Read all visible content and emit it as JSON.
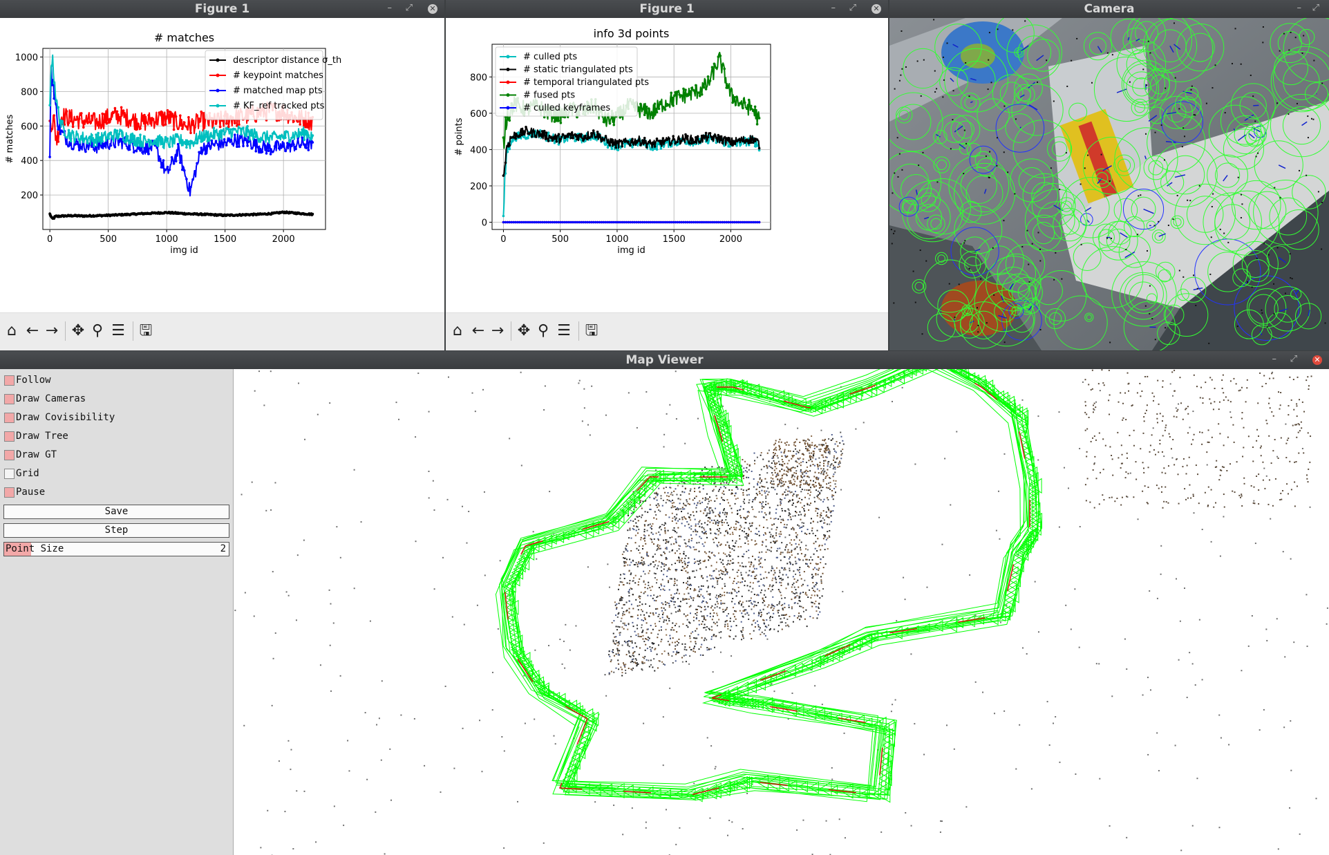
{
  "windows": {
    "fig1_title": "Figure 1",
    "fig2_title": "Figure 1",
    "camera_title": "Camera",
    "mapviewer_title": "Map Viewer"
  },
  "colors": {
    "black": "#000000",
    "red": "#ff0000",
    "blue": "#0000ff",
    "cyan": "#00bfbf",
    "green": "#008000",
    "trajectory_green": "#00ff00",
    "checkbox_on": "#f2a8a8"
  },
  "toolbar_icons": [
    "home-icon",
    "back-arrow-icon",
    "forward-arrow-icon",
    "pan-icon",
    "zoom-icon",
    "configure-subplots-icon",
    "save-icon"
  ],
  "map_panel": {
    "checkboxes": [
      {
        "label": "Follow",
        "checked": true
      },
      {
        "label": "Draw Cameras",
        "checked": true
      },
      {
        "label": "Draw Covisibility",
        "checked": true
      },
      {
        "label": "Draw Tree",
        "checked": true
      },
      {
        "label": "Draw GT",
        "checked": true
      },
      {
        "label": "Grid",
        "checked": false
      },
      {
        "label": "Pause",
        "checked": true
      }
    ],
    "save_label": "Save",
    "step_label": "Step",
    "point_size": {
      "label": "Point Size",
      "value": "2",
      "fraction": 0.12
    }
  },
  "chart_data": [
    {
      "type": "line",
      "title": "# matches",
      "xlabel": "img id",
      "ylabel": "# matches",
      "xlim": [
        -60,
        2360
      ],
      "ylim": [
        0,
        1050
      ],
      "xticks": [
        0,
        500,
        1000,
        1500,
        2000
      ],
      "yticks": [
        200,
        400,
        600,
        800,
        1000
      ],
      "grid": true,
      "legend_position": "top-right",
      "series": [
        {
          "name": "descriptor distance σ_th",
          "color": "#000000",
          "x": [
            0,
            20,
            50,
            100,
            200,
            300,
            400,
            500,
            600,
            700,
            800,
            900,
            1000,
            1100,
            1200,
            1300,
            1400,
            1500,
            1600,
            1700,
            1800,
            1900,
            2000,
            2100,
            2200,
            2250
          ],
          "y": [
            90,
            60,
            75,
            78,
            80,
            78,
            80,
            82,
            85,
            88,
            92,
            95,
            98,
            94,
            90,
            88,
            85,
            82,
            84,
            86,
            88,
            92,
            100,
            95,
            90,
            88
          ]
        },
        {
          "name": "# keypoint matches",
          "color": "#ff0000",
          "x": [
            0,
            10,
            30,
            60,
            100,
            150,
            200,
            300,
            400,
            500,
            600,
            700,
            800,
            900,
            1000,
            1100,
            1200,
            1300,
            1400,
            1500,
            1600,
            1700,
            1800,
            1900,
            2000,
            2100,
            2200,
            2250
          ],
          "y": [
            600,
            650,
            630,
            520,
            660,
            650,
            640,
            630,
            620,
            650,
            660,
            640,
            620,
            640,
            650,
            620,
            600,
            630,
            620,
            640,
            650,
            660,
            680,
            690,
            680,
            650,
            640,
            620
          ]
        },
        {
          "name": "# matched map pts",
          "color": "#0000ff",
          "x": [
            0,
            10,
            30,
            60,
            100,
            150,
            200,
            300,
            400,
            500,
            600,
            700,
            800,
            900,
            1000,
            1100,
            1200,
            1300,
            1400,
            1500,
            1600,
            1700,
            1800,
            1900,
            2000,
            2100,
            2200,
            2250
          ],
          "y": [
            460,
            900,
            860,
            640,
            560,
            520,
            500,
            490,
            480,
            500,
            510,
            490,
            470,
            480,
            320,
            460,
            220,
            470,
            490,
            500,
            520,
            510,
            480,
            470,
            480,
            490,
            500,
            480
          ]
        },
        {
          "name": "# KF_ref tracked pts",
          "color": "#00bfbf",
          "x": [
            0,
            10,
            30,
            60,
            100,
            150,
            200,
            300,
            400,
            500,
            600,
            700,
            800,
            900,
            1000,
            1100,
            1200,
            1300,
            1400,
            1500,
            1600,
            1700,
            1800,
            1900,
            2000,
            2100,
            2200,
            2250
          ],
          "y": [
            700,
            1000,
            940,
            720,
            600,
            560,
            540,
            530,
            520,
            540,
            550,
            530,
            510,
            520,
            500,
            520,
            500,
            540,
            550,
            560,
            570,
            560,
            540,
            530,
            540,
            550,
            560,
            540
          ]
        }
      ]
    },
    {
      "type": "line",
      "title": "info 3d points",
      "xlabel": "img id",
      "ylabel": "# points",
      "xlim": [
        -100,
        2350
      ],
      "ylim": [
        -40,
        980
      ],
      "xticks": [
        0,
        500,
        1000,
        1500,
        2000
      ],
      "yticks": [
        0,
        200,
        400,
        600,
        800
      ],
      "grid": true,
      "legend_position": "top-left",
      "series": [
        {
          "name": "# culled pts",
          "color": "#00bfbf",
          "x": [
            0,
            10,
            30,
            60,
            100,
            200,
            300,
            400,
            500,
            600,
            700,
            800,
            900,
            1000,
            1100,
            1200,
            1300,
            1400,
            1500,
            1600,
            1700,
            1800,
            1900,
            2000,
            2100,
            2200,
            2250
          ],
          "y": [
            0,
            200,
            400,
            440,
            470,
            480,
            490,
            470,
            450,
            470,
            460,
            480,
            440,
            420,
            430,
            440,
            420,
            430,
            440,
            450,
            440,
            460,
            450,
            430,
            440,
            450,
            420
          ]
        },
        {
          "name": "# static triangulated pts",
          "color": "#000000",
          "x": [
            0,
            10,
            30,
            60,
            100,
            200,
            300,
            400,
            500,
            600,
            700,
            800,
            900,
            1000,
            1100,
            1200,
            1300,
            1400,
            1500,
            1600,
            1700,
            1800,
            1900,
            2000,
            2100,
            2200,
            2250
          ],
          "y": [
            240,
            300,
            420,
            460,
            480,
            500,
            490,
            470,
            460,
            480,
            470,
            490,
            450,
            430,
            440,
            450,
            430,
            440,
            450,
            460,
            450,
            470,
            460,
            440,
            450,
            460,
            430
          ]
        },
        {
          "name": "# temporal triangulated pts",
          "color": "#ff0000",
          "x": [
            0,
            2250
          ],
          "y": [
            0,
            0
          ]
        },
        {
          "name": "# fused pts",
          "color": "#008000",
          "x": [
            0,
            10,
            30,
            60,
            100,
            200,
            300,
            400,
            500,
            600,
            700,
            800,
            900,
            1000,
            1100,
            1200,
            1300,
            1400,
            1500,
            1600,
            1700,
            1800,
            1900,
            2000,
            2100,
            2200,
            2250
          ],
          "y": [
            400,
            500,
            600,
            620,
            650,
            620,
            640,
            600,
            590,
            620,
            610,
            640,
            560,
            580,
            640,
            620,
            600,
            650,
            680,
            700,
            720,
            760,
            900,
            700,
            650,
            620,
            560
          ]
        },
        {
          "name": "# culled keyframes",
          "color": "#0000ff",
          "x": [
            0,
            2250
          ],
          "y": [
            0,
            0
          ]
        }
      ]
    }
  ]
}
